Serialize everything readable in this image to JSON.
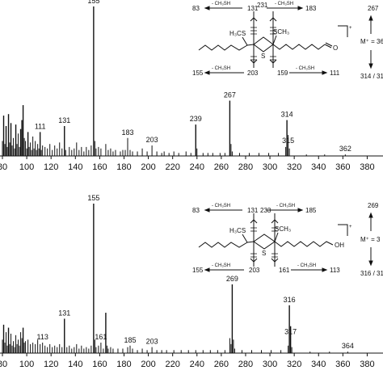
{
  "chart_data": [
    {
      "type": "bar",
      "title": "",
      "xlabel": "",
      "ylabel": "",
      "xlim": [
        78,
        393
      ],
      "ylim": [
        0,
        100
      ],
      "xticks": [
        80,
        100,
        120,
        140,
        160,
        180,
        200,
        220,
        240,
        260,
        280,
        300,
        320,
        340,
        360,
        380
      ],
      "peaks": [
        {
          "mz": 80,
          "i": 10
        },
        {
          "mz": 81,
          "i": 27
        },
        {
          "mz": 82,
          "i": 8
        },
        {
          "mz": 83,
          "i": 20
        },
        {
          "mz": 84,
          "i": 6
        },
        {
          "mz": 85,
          "i": 28
        },
        {
          "mz": 86,
          "i": 9
        },
        {
          "mz": 87,
          "i": 22
        },
        {
          "mz": 88,
          "i": 7
        },
        {
          "mz": 89,
          "i": 12
        },
        {
          "mz": 90,
          "i": 5
        },
        {
          "mz": 91,
          "i": 21
        },
        {
          "mz": 92,
          "i": 8
        },
        {
          "mz": 93,
          "i": 15
        },
        {
          "mz": 94,
          "i": 6
        },
        {
          "mz": 95,
          "i": 18
        },
        {
          "mz": 96,
          "i": 24
        },
        {
          "mz": 97,
          "i": 34
        },
        {
          "mz": 98,
          "i": 12
        },
        {
          "mz": 99,
          "i": 10
        },
        {
          "mz": 100,
          "i": 5
        },
        {
          "mz": 101,
          "i": 16
        },
        {
          "mz": 102,
          "i": 6
        },
        {
          "mz": 103,
          "i": 9
        },
        {
          "mz": 104,
          "i": 4
        },
        {
          "mz": 105,
          "i": 13
        },
        {
          "mz": 106,
          "i": 5
        },
        {
          "mz": 107,
          "i": 10
        },
        {
          "mz": 108,
          "i": 4
        },
        {
          "mz": 109,
          "i": 8
        },
        {
          "mz": 110,
          "i": 5
        },
        {
          "mz": 111,
          "i": 16
        },
        {
          "mz": 112,
          "i": 4
        },
        {
          "mz": 113,
          "i": 7
        },
        {
          "mz": 115,
          "i": 6
        },
        {
          "mz": 117,
          "i": 5
        },
        {
          "mz": 119,
          "i": 8
        },
        {
          "mz": 121,
          "i": 4
        },
        {
          "mz": 123,
          "i": 7
        },
        {
          "mz": 125,
          "i": 5
        },
        {
          "mz": 127,
          "i": 9
        },
        {
          "mz": 129,
          "i": 5
        },
        {
          "mz": 131,
          "i": 20
        },
        {
          "mz": 132,
          "i": 4
        },
        {
          "mz": 135,
          "i": 6
        },
        {
          "mz": 137,
          "i": 4
        },
        {
          "mz": 139,
          "i": 5
        },
        {
          "mz": 141,
          "i": 9
        },
        {
          "mz": 143,
          "i": 4
        },
        {
          "mz": 145,
          "i": 6
        },
        {
          "mz": 147,
          "i": 3
        },
        {
          "mz": 149,
          "i": 6
        },
        {
          "mz": 151,
          "i": 4
        },
        {
          "mz": 153,
          "i": 7
        },
        {
          "mz": 155,
          "i": 100
        },
        {
          "mz": 156,
          "i": 10
        },
        {
          "mz": 157,
          "i": 5
        },
        {
          "mz": 159,
          "i": 6
        },
        {
          "mz": 161,
          "i": 5
        },
        {
          "mz": 165,
          "i": 8
        },
        {
          "mz": 167,
          "i": 4
        },
        {
          "mz": 169,
          "i": 5
        },
        {
          "mz": 171,
          "i": 3
        },
        {
          "mz": 173,
          "i": 4
        },
        {
          "mz": 177,
          "i": 3
        },
        {
          "mz": 179,
          "i": 4
        },
        {
          "mz": 181,
          "i": 4
        },
        {
          "mz": 183,
          "i": 12
        },
        {
          "mz": 185,
          "i": 4
        },
        {
          "mz": 187,
          "i": 3
        },
        {
          "mz": 191,
          "i": 3
        },
        {
          "mz": 195,
          "i": 5
        },
        {
          "mz": 199,
          "i": 3
        },
        {
          "mz": 203,
          "i": 7
        },
        {
          "mz": 207,
          "i": 3
        },
        {
          "mz": 211,
          "i": 2
        },
        {
          "mz": 213,
          "i": 3
        },
        {
          "mz": 217,
          "i": 2
        },
        {
          "mz": 221,
          "i": 3
        },
        {
          "mz": 225,
          "i": 2
        },
        {
          "mz": 231,
          "i": 3
        },
        {
          "mz": 235,
          "i": 2
        },
        {
          "mz": 239,
          "i": 21
        },
        {
          "mz": 240,
          "i": 5
        },
        {
          "mz": 245,
          "i": 2
        },
        {
          "mz": 249,
          "i": 2
        },
        {
          "mz": 253,
          "i": 2
        },
        {
          "mz": 259,
          "i": 2
        },
        {
          "mz": 263,
          "i": 2
        },
        {
          "mz": 267,
          "i": 37
        },
        {
          "mz": 268,
          "i": 8
        },
        {
          "mz": 269,
          "i": 3
        },
        {
          "mz": 275,
          "i": 2
        },
        {
          "mz": 283,
          "i": 2
        },
        {
          "mz": 291,
          "i": 2
        },
        {
          "mz": 299,
          "i": 2
        },
        {
          "mz": 307,
          "i": 2
        },
        {
          "mz": 313,
          "i": 6
        },
        {
          "mz": 314,
          "i": 24
        },
        {
          "mz": 315,
          "i": 14
        },
        {
          "mz": 316,
          "i": 5
        },
        {
          "mz": 330,
          "i": 1
        },
        {
          "mz": 345,
          "i": 1
        },
        {
          "mz": 362,
          "i": 1
        }
      ],
      "annotations": [
        "155",
        "131",
        "111",
        "183",
        "203",
        "239",
        "267",
        "314",
        "315",
        "362"
      ]
    },
    {
      "type": "bar",
      "title": "",
      "xlabel": "",
      "ylabel": "",
      "xlim": [
        78,
        393
      ],
      "ylim": [
        0,
        100
      ],
      "xticks": [
        80,
        100,
        120,
        140,
        160,
        180,
        200,
        220,
        240,
        260,
        280,
        300,
        320,
        340,
        360,
        380
      ],
      "peaks": [
        {
          "mz": 80,
          "i": 9
        },
        {
          "mz": 81,
          "i": 19
        },
        {
          "mz": 82,
          "i": 7
        },
        {
          "mz": 83,
          "i": 14
        },
        {
          "mz": 84,
          "i": 5
        },
        {
          "mz": 85,
          "i": 17
        },
        {
          "mz": 86,
          "i": 6
        },
        {
          "mz": 87,
          "i": 13
        },
        {
          "mz": 88,
          "i": 5
        },
        {
          "mz": 89,
          "i": 8
        },
        {
          "mz": 90,
          "i": 4
        },
        {
          "mz": 91,
          "i": 12
        },
        {
          "mz": 92,
          "i": 6
        },
        {
          "mz": 93,
          "i": 9
        },
        {
          "mz": 94,
          "i": 5
        },
        {
          "mz": 95,
          "i": 14
        },
        {
          "mz": 96,
          "i": 10
        },
        {
          "mz": 97,
          "i": 17
        },
        {
          "mz": 98,
          "i": 7
        },
        {
          "mz": 99,
          "i": 8
        },
        {
          "mz": 101,
          "i": 9
        },
        {
          "mz": 103,
          "i": 6
        },
        {
          "mz": 105,
          "i": 7
        },
        {
          "mz": 107,
          "i": 6
        },
        {
          "mz": 109,
          "i": 9
        },
        {
          "mz": 111,
          "i": 6
        },
        {
          "mz": 113,
          "i": 7
        },
        {
          "mz": 115,
          "i": 5
        },
        {
          "mz": 117,
          "i": 4
        },
        {
          "mz": 119,
          "i": 6
        },
        {
          "mz": 121,
          "i": 4
        },
        {
          "mz": 123,
          "i": 5
        },
        {
          "mz": 125,
          "i": 4
        },
        {
          "mz": 127,
          "i": 6
        },
        {
          "mz": 129,
          "i": 4
        },
        {
          "mz": 131,
          "i": 23
        },
        {
          "mz": 133,
          "i": 4
        },
        {
          "mz": 135,
          "i": 5
        },
        {
          "mz": 137,
          "i": 3
        },
        {
          "mz": 139,
          "i": 4
        },
        {
          "mz": 141,
          "i": 6
        },
        {
          "mz": 143,
          "i": 3
        },
        {
          "mz": 145,
          "i": 5
        },
        {
          "mz": 147,
          "i": 3
        },
        {
          "mz": 149,
          "i": 4
        },
        {
          "mz": 151,
          "i": 3
        },
        {
          "mz": 153,
          "i": 5
        },
        {
          "mz": 155,
          "i": 100
        },
        {
          "mz": 156,
          "i": 9
        },
        {
          "mz": 157,
          "i": 4
        },
        {
          "mz": 159,
          "i": 5
        },
        {
          "mz": 161,
          "i": 7
        },
        {
          "mz": 163,
          "i": 3
        },
        {
          "mz": 165,
          "i": 27
        },
        {
          "mz": 166,
          "i": 5
        },
        {
          "mz": 167,
          "i": 3
        },
        {
          "mz": 169,
          "i": 4
        },
        {
          "mz": 171,
          "i": 3
        },
        {
          "mz": 175,
          "i": 3
        },
        {
          "mz": 179,
          "i": 3
        },
        {
          "mz": 183,
          "i": 4
        },
        {
          "mz": 185,
          "i": 5
        },
        {
          "mz": 187,
          "i": 3
        },
        {
          "mz": 191,
          "i": 2
        },
        {
          "mz": 195,
          "i": 3
        },
        {
          "mz": 199,
          "i": 2
        },
        {
          "mz": 203,
          "i": 4
        },
        {
          "mz": 207,
          "i": 2
        },
        {
          "mz": 211,
          "i": 2
        },
        {
          "mz": 215,
          "i": 2
        },
        {
          "mz": 221,
          "i": 2
        },
        {
          "mz": 227,
          "i": 2
        },
        {
          "mz": 233,
          "i": 2
        },
        {
          "mz": 239,
          "i": 2
        },
        {
          "mz": 245,
          "i": 2
        },
        {
          "mz": 251,
          "i": 2
        },
        {
          "mz": 257,
          "i": 2
        },
        {
          "mz": 263,
          "i": 2
        },
        {
          "mz": 267,
          "i": 10
        },
        {
          "mz": 268,
          "i": 6
        },
        {
          "mz": 269,
          "i": 46
        },
        {
          "mz": 270,
          "i": 9
        },
        {
          "mz": 271,
          "i": 3
        },
        {
          "mz": 277,
          "i": 2
        },
        {
          "mz": 285,
          "i": 2
        },
        {
          "mz": 293,
          "i": 2
        },
        {
          "mz": 301,
          "i": 2
        },
        {
          "mz": 309,
          "i": 2
        },
        {
          "mz": 315,
          "i": 5
        },
        {
          "mz": 316,
          "i": 32
        },
        {
          "mz": 317,
          "i": 18
        },
        {
          "mz": 318,
          "i": 4
        },
        {
          "mz": 333,
          "i": 1
        },
        {
          "mz": 349,
          "i": 1
        },
        {
          "mz": 364,
          "i": 1
        }
      ],
      "annotations": [
        "155",
        "131",
        "113",
        "161",
        "185",
        "203",
        "269",
        "316",
        "317",
        "364"
      ]
    }
  ],
  "structure_top": {
    "fragments": [
      "83",
      "131",
      "231",
      "183",
      "155",
      "203",
      "159",
      "111"
    ],
    "losses": [
      "- CH₃SH",
      "- CH₃SH",
      "- CH₃SH",
      "- CH₃SH"
    ],
    "groups": [
      "H₃CS",
      "SCH₃",
      "S",
      "O"
    ],
    "radical_cation": "+",
    "side": [
      "267",
      "M⁺ = 36",
      "314 / 31"
    ]
  },
  "structure_bottom": {
    "fragments": [
      "83",
      "131",
      "233",
      "185",
      "155",
      "203",
      "161",
      "113"
    ],
    "losses": [
      "- CH₃SH",
      "- CH₃SH",
      "- CH₃SH",
      "- CH₃SH"
    ],
    "groups": [
      "H₃CS",
      "SCH₃",
      "S",
      "OH"
    ],
    "radical_cation": "+",
    "side": [
      "269",
      "M⁺ = 3",
      "316 / 31"
    ]
  }
}
